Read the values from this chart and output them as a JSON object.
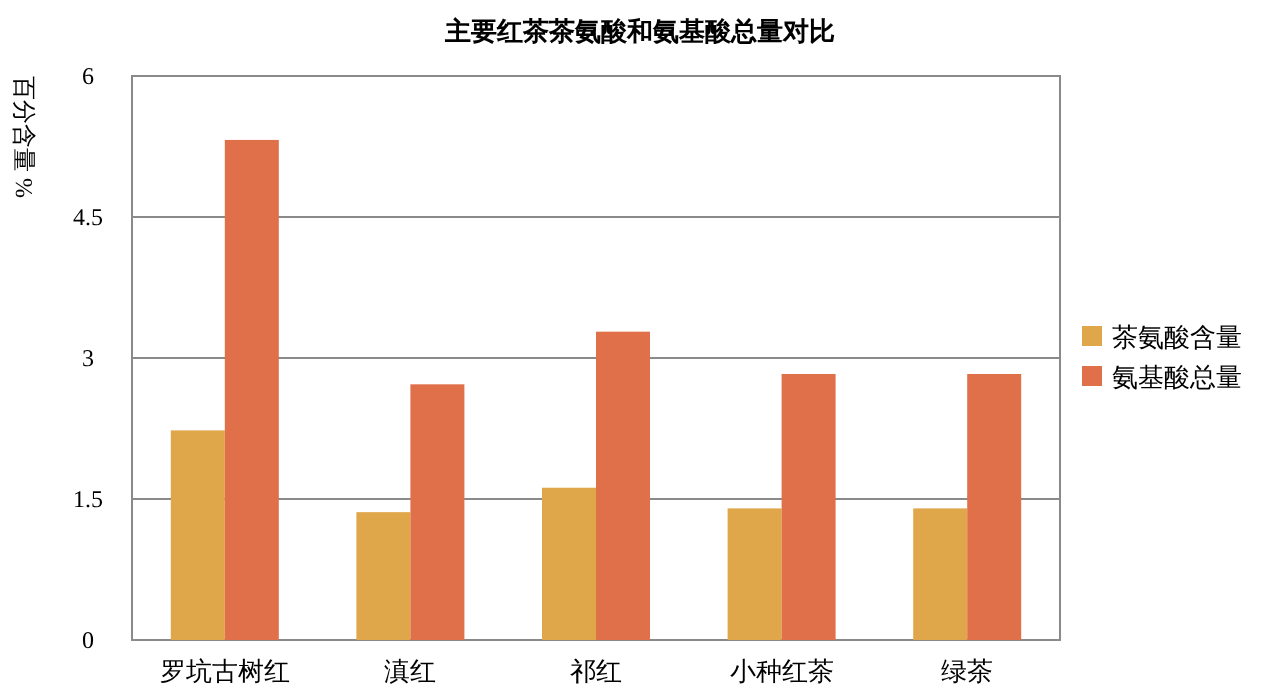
{
  "chart_data": {
    "type": "bar",
    "title": "主要红茶茶氨酸和氨基酸总量对比",
    "ylabel": "百分含量 %",
    "categories": [
      "罗坑古树红",
      "滇红",
      "祁红",
      "小种红茶",
      "绿茶"
    ],
    "series": [
      {
        "name": "茶氨酸含量",
        "color": "#e0a64a",
        "values": [
          2.23,
          1.36,
          1.62,
          1.4,
          1.4
        ]
      },
      {
        "name": "氨基酸总量",
        "color": "#e0704a",
        "values": [
          5.32,
          2.72,
          3.28,
          2.83,
          2.83
        ]
      }
    ],
    "ylim": [
      0,
      6
    ],
    "yticks": [
      0,
      1.5,
      3,
      4.5,
      6
    ],
    "grid": "y",
    "legend": "right"
  }
}
